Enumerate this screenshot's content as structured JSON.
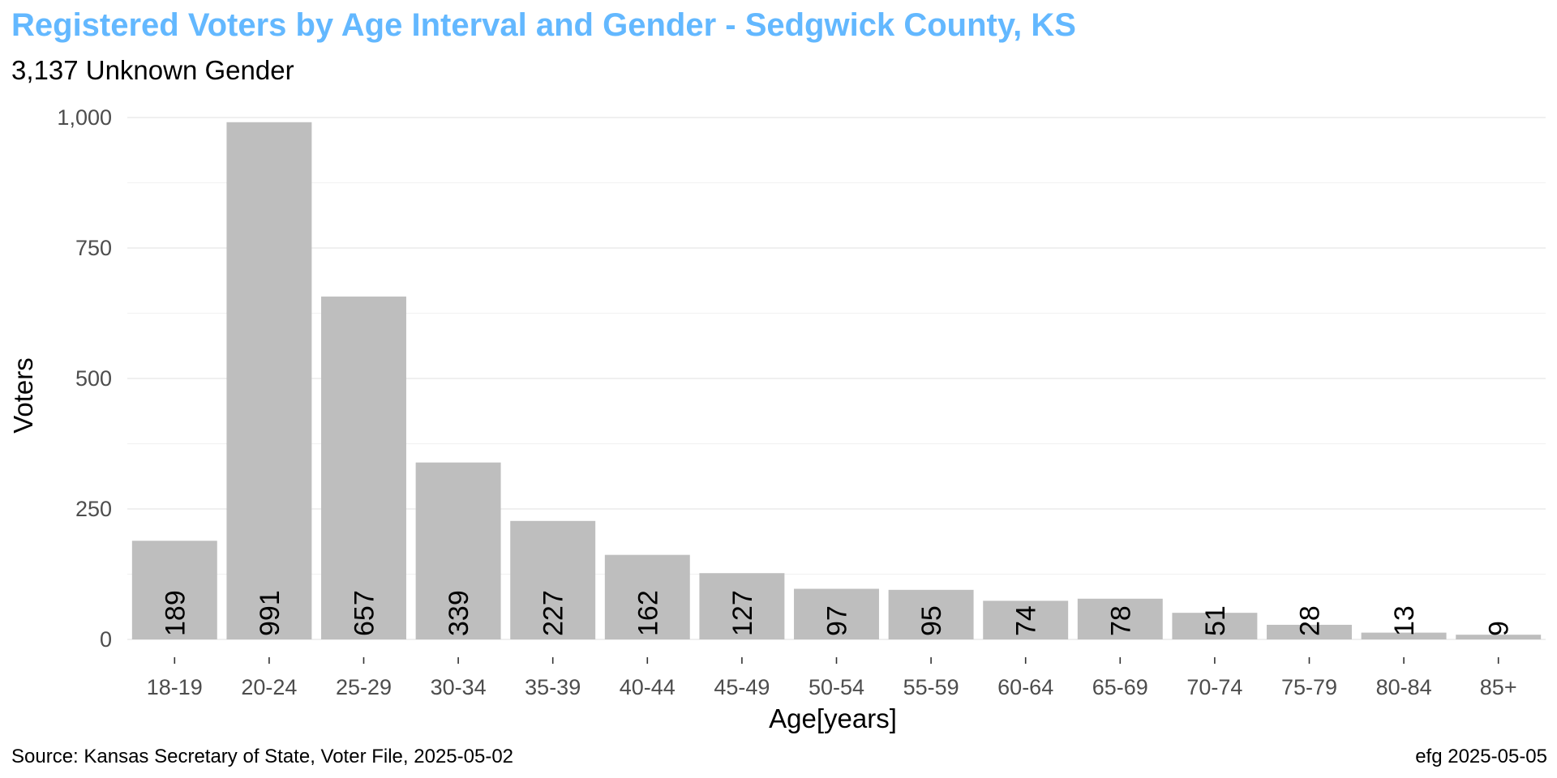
{
  "chart_data": {
    "type": "bar",
    "title": "Registered Voters by Age Interval and Gender - Sedgwick County, KS",
    "subtitle": "3,137 Unknown Gender",
    "xlabel": "Age[years]",
    "ylabel": "Voters",
    "categories": [
      "18-19",
      "20-24",
      "25-29",
      "30-34",
      "35-39",
      "40-44",
      "45-49",
      "50-54",
      "55-59",
      "60-64",
      "65-69",
      "70-74",
      "75-79",
      "80-84",
      "85+"
    ],
    "values": [
      189,
      991,
      657,
      339,
      227,
      162,
      127,
      97,
      95,
      74,
      78,
      51,
      28,
      13,
      9
    ],
    "ylim": [
      0,
      1000
    ],
    "yticks": [
      0,
      250,
      500,
      750,
      1000
    ],
    "ytick_labels": [
      "0",
      "250",
      "500",
      "750",
      "1,000"
    ],
    "grid": true,
    "bar_color": "#BEBEBE",
    "title_color": "#63B8FF",
    "caption_left": "Source:  Kansas Secretary of State, Voter File, 2025-05-02",
    "caption_right": "efg 2025-05-05"
  }
}
